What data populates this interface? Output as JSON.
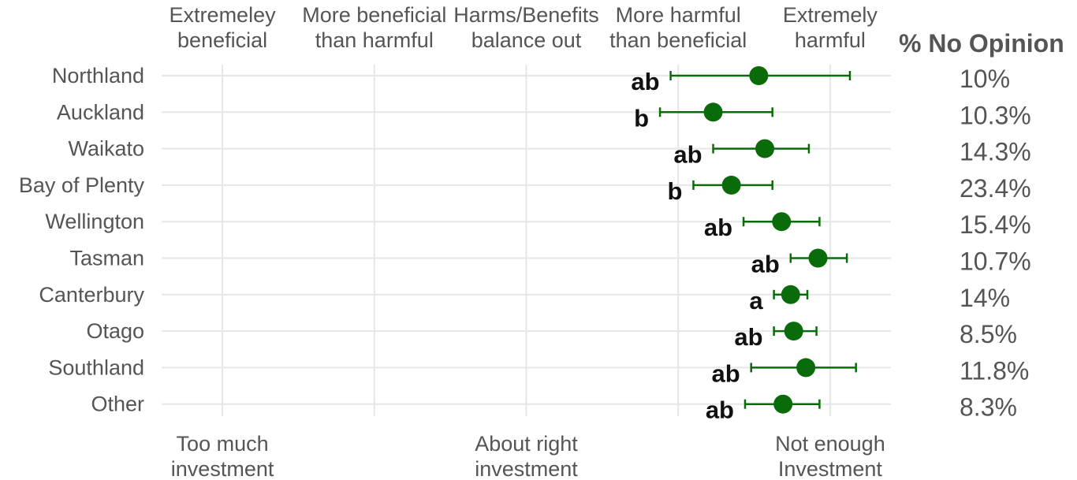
{
  "chart_data": {
    "type": "scatter",
    "top_axis_labels": [
      {
        "value": 1,
        "lines": [
          "Extremeley",
          "beneficial"
        ]
      },
      {
        "value": 2,
        "lines": [
          "More beneficial",
          "than harmful"
        ]
      },
      {
        "value": 3,
        "lines": [
          "Harms/Benefits",
          "balance out"
        ]
      },
      {
        "value": 4,
        "lines": [
          "More harmful",
          "than beneficial"
        ]
      },
      {
        "value": 5,
        "lines": [
          "Extremely",
          "harmful"
        ]
      }
    ],
    "bottom_axis_labels": [
      {
        "value": 1,
        "lines": [
          "Too much",
          "investment"
        ]
      },
      {
        "value": 3,
        "lines": [
          "About right",
          "investment"
        ]
      },
      {
        "value": 5,
        "lines": [
          "Not enough",
          "Investment"
        ]
      }
    ],
    "xlim": [
      0.6,
      5.4
    ],
    "pct_header": "% No Opinion",
    "point_color": "#0a6b0a",
    "series": [
      {
        "region": "Northland",
        "value": 4.53,
        "ci_low": 3.95,
        "ci_high": 5.13,
        "sig": "ab",
        "pct": "10%"
      },
      {
        "region": "Auckland",
        "value": 4.23,
        "ci_low": 3.88,
        "ci_high": 4.62,
        "sig": "b",
        "pct": "10.3%"
      },
      {
        "region": "Waikato",
        "value": 4.57,
        "ci_low": 4.23,
        "ci_high": 4.86,
        "sig": "ab",
        "pct": "14.3%"
      },
      {
        "region": "Bay of Plenty",
        "value": 4.35,
        "ci_low": 4.1,
        "ci_high": 4.62,
        "sig": "b",
        "pct": "23.4%"
      },
      {
        "region": "Wellington",
        "value": 4.68,
        "ci_low": 4.43,
        "ci_high": 4.93,
        "sig": "ab",
        "pct": "15.4%"
      },
      {
        "region": "Tasman",
        "value": 4.92,
        "ci_low": 4.74,
        "ci_high": 5.11,
        "sig": "ab",
        "pct": "10.7%"
      },
      {
        "region": "Canterbury",
        "value": 4.74,
        "ci_low": 4.63,
        "ci_high": 4.85,
        "sig": "a",
        "pct": "14%"
      },
      {
        "region": "Otago",
        "value": 4.76,
        "ci_low": 4.63,
        "ci_high": 4.91,
        "sig": "ab",
        "pct": "8.5%"
      },
      {
        "region": "Southland",
        "value": 4.84,
        "ci_low": 4.48,
        "ci_high": 5.17,
        "sig": "ab",
        "pct": "11.8%"
      },
      {
        "region": "Other",
        "value": 4.69,
        "ci_low": 4.44,
        "ci_high": 4.93,
        "sig": "ab",
        "pct": "8.3%"
      }
    ]
  }
}
